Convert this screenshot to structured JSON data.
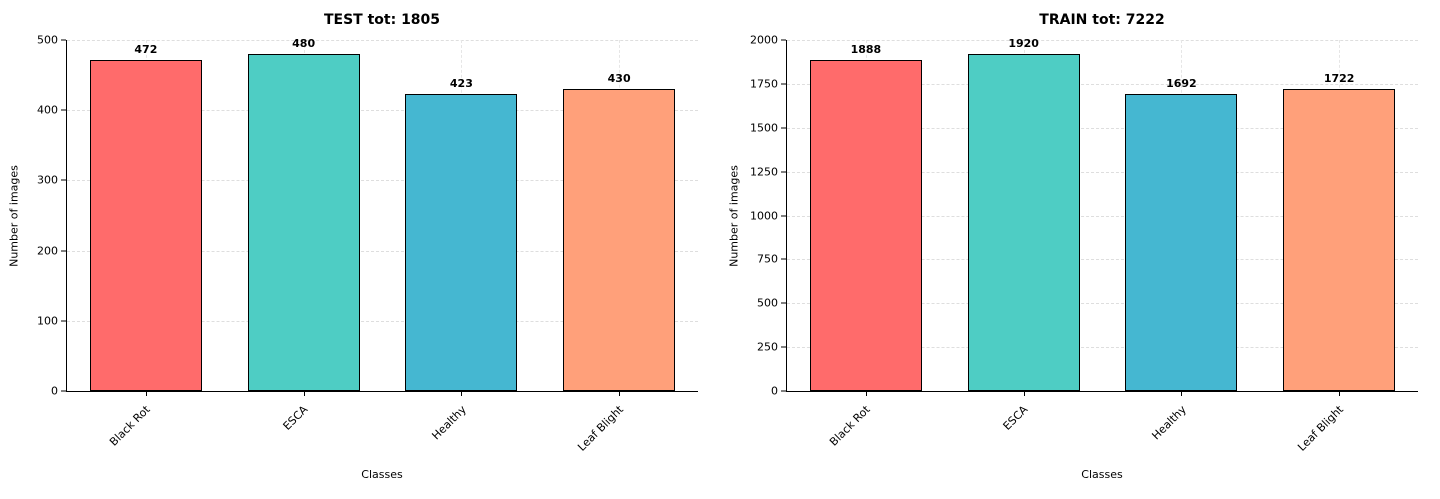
{
  "chart_data": [
    {
      "type": "bar",
      "title": "TEST tot: 1805",
      "categories": [
        "Black Rot",
        "ESCA",
        "Healthy",
        "Leaf Blight"
      ],
      "values": [
        472,
        480,
        423,
        430
      ],
      "value_labels": [
        "472",
        "480",
        "423",
        "430"
      ],
      "xlabel": "Classes",
      "ylabel": "Number of images",
      "ylim": [
        0,
        500
      ],
      "yticks": [
        0,
        100,
        200,
        300,
        400,
        500
      ],
      "bar_colors": [
        "#FF6B6B",
        "#4ECDC4",
        "#45B7D1",
        "#FFA07A"
      ],
      "bar_edge_color": "#000000",
      "grid": "dashed",
      "legend": "none"
    },
    {
      "type": "bar",
      "title": "TRAIN tot: 7222",
      "categories": [
        "Black Rot",
        "ESCA",
        "Healthy",
        "Leaf Blight"
      ],
      "values": [
        1888,
        1920,
        1692,
        1722
      ],
      "value_labels": [
        "1888",
        "1920",
        "1692",
        "1722"
      ],
      "xlabel": "Classes",
      "ylabel": "Number of images",
      "ylim": [
        0,
        2000
      ],
      "yticks": [
        0,
        250,
        500,
        750,
        1000,
        1250,
        1500,
        1750,
        2000
      ],
      "bar_colors": [
        "#FF6B6B",
        "#4ECDC4",
        "#45B7D1",
        "#FFA07A"
      ],
      "bar_edge_color": "#000000",
      "grid": "dashed",
      "legend": "none"
    }
  ]
}
